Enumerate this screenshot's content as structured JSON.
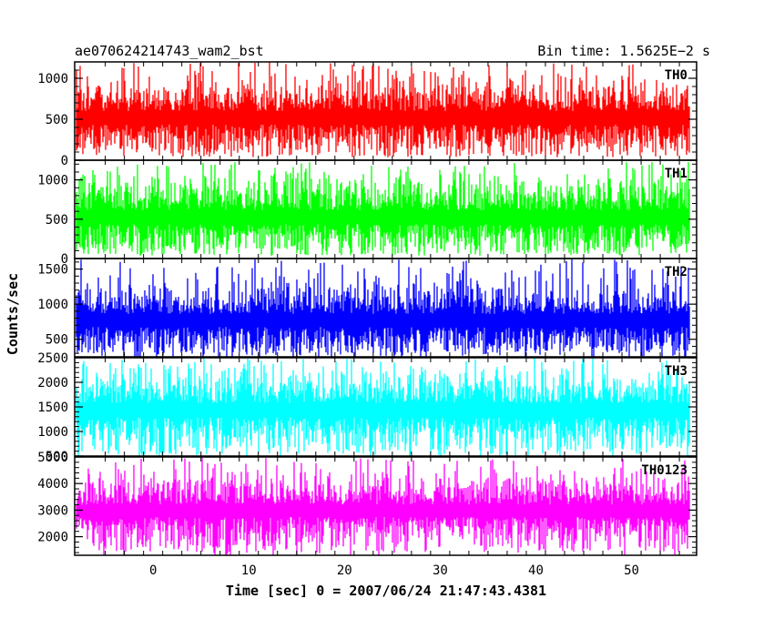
{
  "chart_data": {
    "type": "line",
    "title_left": "ae070624214743_wam2_bst",
    "title_right": "Bin time: 1.5625E−2 s",
    "xlabel": "Time [sec] 0 = 2007/06/24 21:47:43.4381",
    "ylabel": "Counts/sec",
    "xlim": [
      -8.2,
      56.8
    ],
    "x_data_range": [
      -8.0,
      56.0
    ],
    "x_ticks": [
      0,
      10,
      20,
      30,
      40,
      50
    ],
    "x_tick_labels": [
      "0",
      "10",
      "20",
      "30",
      "40",
      "50"
    ],
    "bin_time": 0.015625,
    "grid": false,
    "panels": [
      {
        "name": "TH0",
        "color": "#ff0000",
        "ylim": [
          0,
          1200
        ],
        "y_ticks": [
          0,
          500,
          1000
        ],
        "y_tick_labels": [
          "0",
          "500",
          "1000"
        ],
        "mean": 510,
        "noise": 150,
        "spike_max": 1200,
        "floor": 60
      },
      {
        "name": "TH1",
        "color": "#00ff00",
        "ylim": [
          0,
          1250
        ],
        "y_ticks": [
          0,
          500,
          1000
        ],
        "y_tick_labels": [
          "0",
          "500",
          "1000"
        ],
        "mean": 520,
        "noise": 160,
        "spike_max": 1230,
        "floor": 60
      },
      {
        "name": "TH2",
        "color": "#0000ff",
        "ylim": [
          250,
          1650
        ],
        "y_ticks": [
          500,
          1000,
          1500
        ],
        "y_tick_labels": [
          "500",
          "1000",
          "1500"
        ],
        "mean": 760,
        "noise": 170,
        "spike_max": 1640,
        "floor": 300
      },
      {
        "name": "TH3",
        "color": "#00ffff",
        "ylim": [
          500,
          2500
        ],
        "y_ticks": [
          500,
          1000,
          1500,
          2000,
          2500
        ],
        "y_tick_labels": [
          "500",
          "1000",
          "1500",
          "2000",
          "2500"
        ],
        "mean": 1420,
        "noise": 260,
        "spike_max": 2500,
        "floor": 520
      },
      {
        "name": "TH0123",
        "color": "#ff00ff",
        "ylim": [
          1300,
          5000
        ],
        "y_ticks": [
          2000,
          3000,
          4000,
          5000
        ],
        "y_tick_labels": [
          "2000",
          "3000",
          "4000",
          "5000"
        ],
        "mean": 2950,
        "noise": 420,
        "spike_max": 4980,
        "floor": 1380
      }
    ]
  }
}
